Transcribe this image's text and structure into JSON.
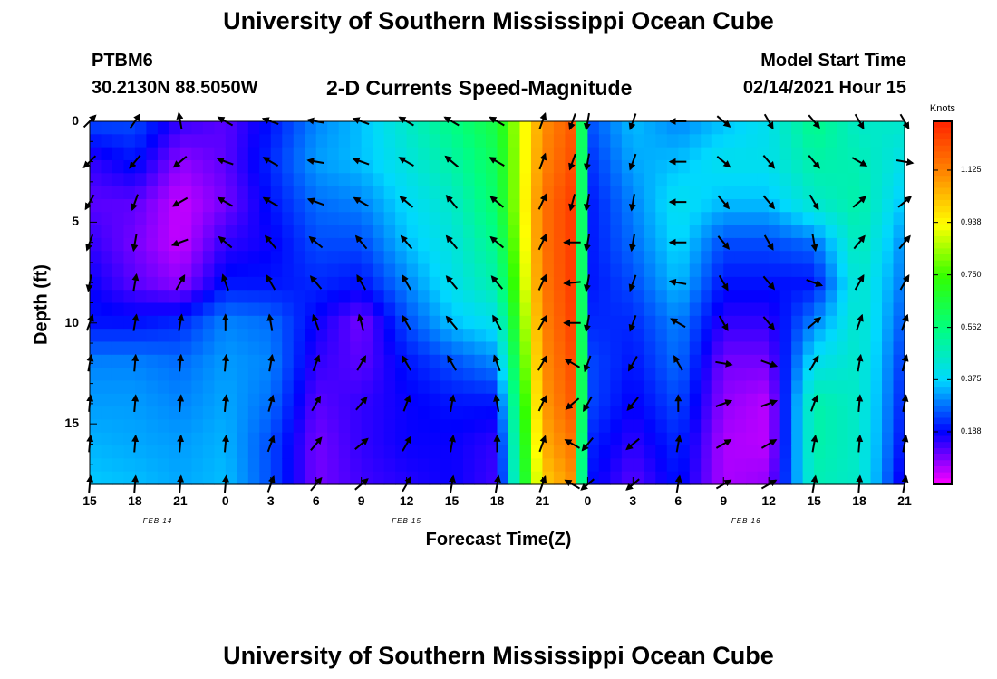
{
  "header": {
    "title": "University of Southern Mississippi Ocean Cube",
    "station": "PTBM6",
    "coords": "30.2130N 88.5050W",
    "product": "2-D Currents Speed-Magnitude",
    "model_start_label": "Model Start Time",
    "model_start_value": "02/14/2021 Hour 15"
  },
  "footer": {
    "title": "University of Southern Mississippi Ocean Cube"
  },
  "colors": {
    "scale": [
      "#ff00ff",
      "#0000ff",
      "#00d8ff",
      "#00ff80",
      "#33ff00",
      "#ffff00",
      "#ff8800",
      "#ff2200"
    ]
  },
  "chart_data": {
    "type": "heatmap",
    "title": "2-D Currents Speed-Magnitude",
    "xlabel": "Forecast Time(Z)",
    "ylabel": "Depth (ft)",
    "units": "Knots",
    "ylim": [
      0,
      18
    ],
    "y_ticks": [
      0,
      5,
      10,
      15
    ],
    "x_start_hour": 0,
    "x_end_hour": 54,
    "x_ticks": [
      "15",
      "18",
      "21",
      "0",
      "3",
      "6",
      "9",
      "12",
      "15",
      "18",
      "21",
      "0",
      "3",
      "6",
      "9",
      "12",
      "15",
      "18",
      "21"
    ],
    "date_labels": [
      {
        "text": "FEB 14",
        "hour": 4.5
      },
      {
        "text": "FEB 15",
        "hour": 21
      },
      {
        "text": "FEB 16",
        "hour": 43.5
      }
    ],
    "colorbar": {
      "min": 0.0,
      "max": 1.3,
      "ticks": [
        "0.188",
        "0.375",
        "0.562",
        "0.750",
        "0.938",
        "1.125"
      ]
    },
    "depths": [
      0,
      2,
      4,
      6,
      8,
      10,
      12,
      14,
      16,
      18
    ],
    "time_columns": [
      {
        "hour": 0,
        "speeds": [
          0.25,
          0.15,
          0.12,
          0.15,
          0.18,
          0.2,
          0.3,
          0.32,
          0.34,
          0.36
        ],
        "directions": [
          45,
          225,
          210,
          200,
          190,
          20,
          10,
          5,
          5,
          5
        ]
      },
      {
        "hour": 3,
        "speeds": [
          0.25,
          0.2,
          0.12,
          0.1,
          0.12,
          0.2,
          0.3,
          0.32,
          0.33,
          0.35
        ],
        "directions": [
          35,
          220,
          200,
          190,
          10,
          10,
          5,
          5,
          5,
          5
        ]
      },
      {
        "hour": 6,
        "speeds": [
          0.15,
          0.08,
          0.04,
          0.04,
          0.08,
          0.22,
          0.28,
          0.3,
          0.32,
          0.33
        ],
        "directions": [
          350,
          230,
          240,
          250,
          30,
          10,
          5,
          5,
          5,
          5
        ]
      },
      {
        "hour": 9,
        "speeds": [
          0.12,
          0.12,
          0.1,
          0.15,
          0.2,
          0.3,
          0.32,
          0.33,
          0.34,
          0.35
        ],
        "directions": [
          300,
          290,
          300,
          310,
          340,
          0,
          5,
          5,
          5,
          5
        ]
      },
      {
        "hour": 12,
        "speeds": [
          0.2,
          0.22,
          0.2,
          0.18,
          0.2,
          0.28,
          0.3,
          0.28,
          0.25,
          0.25
        ],
        "directions": [
          290,
          300,
          300,
          320,
          330,
          350,
          10,
          15,
          20,
          20
        ]
      },
      {
        "hour": 15,
        "speeds": [
          0.3,
          0.32,
          0.28,
          0.25,
          0.22,
          0.18,
          0.15,
          0.12,
          0.1,
          0.1
        ],
        "directions": [
          280,
          280,
          290,
          310,
          320,
          340,
          20,
          30,
          40,
          40
        ]
      },
      {
        "hour": 18,
        "speeds": [
          0.35,
          0.35,
          0.3,
          0.25,
          0.2,
          0.1,
          0.12,
          0.15,
          0.15,
          0.14
        ],
        "directions": [
          290,
          290,
          300,
          320,
          330,
          345,
          30,
          40,
          50,
          50
        ]
      },
      {
        "hour": 21,
        "speeds": [
          0.45,
          0.42,
          0.38,
          0.35,
          0.3,
          0.25,
          0.2,
          0.18,
          0.18,
          0.16
        ],
        "directions": [
          300,
          300,
          310,
          320,
          330,
          330,
          330,
          20,
          30,
          30
        ]
      },
      {
        "hour": 24,
        "speeds": [
          0.55,
          0.5,
          0.45,
          0.42,
          0.4,
          0.35,
          0.25,
          0.2,
          0.18,
          0.18
        ],
        "directions": [
          300,
          310,
          320,
          320,
          320,
          320,
          330,
          10,
          10,
          10
        ]
      },
      {
        "hour": 27,
        "speeds": [
          0.65,
          0.62,
          0.6,
          0.55,
          0.5,
          0.4,
          0.3,
          0.2,
          0.15,
          0.14
        ],
        "directions": [
          300,
          300,
          310,
          310,
          320,
          330,
          340,
          350,
          0,
          10
        ]
      },
      {
        "hour": 30,
        "speeds": [
          1.1,
          1.12,
          1.15,
          1.15,
          1.14,
          1.12,
          1.1,
          1.08,
          1.05,
          1.0
        ],
        "directions": [
          20,
          20,
          25,
          25,
          25,
          30,
          30,
          25,
          20,
          20
        ]
      },
      {
        "hour": 32,
        "speeds": [
          1.2,
          1.22,
          1.25,
          1.25,
          1.25,
          1.24,
          1.22,
          1.2,
          1.15,
          1.1
        ],
        "directions": [
          200,
          200,
          195,
          270,
          265,
          270,
          300,
          230,
          300,
          300
        ]
      },
      {
        "hour": 33,
        "speeds": [
          0.25,
          0.22,
          0.2,
          0.2,
          0.2,
          0.22,
          0.25,
          0.25,
          0.22,
          0.2
        ],
        "directions": [
          190,
          190,
          190,
          190,
          190,
          190,
          200,
          210,
          220,
          230
        ]
      },
      {
        "hour": 36,
        "speeds": [
          0.35,
          0.33,
          0.3,
          0.28,
          0.25,
          0.22,
          0.2,
          0.18,
          0.15,
          0.12
        ],
        "directions": [
          200,
          200,
          190,
          190,
          200,
          200,
          210,
          220,
          230,
          230
        ]
      },
      {
        "hour": 39,
        "speeds": [
          0.3,
          0.35,
          0.4,
          0.38,
          0.35,
          0.3,
          0.28,
          0.25,
          0.22,
          0.2
        ],
        "directions": [
          270,
          270,
          270,
          270,
          280,
          300,
          330,
          0,
          10,
          10
        ]
      },
      {
        "hour": 42,
        "speeds": [
          0.35,
          0.4,
          0.35,
          0.25,
          0.2,
          0.15,
          0.1,
          0.08,
          0.06,
          0.06
        ],
        "directions": [
          130,
          130,
          140,
          140,
          150,
          150,
          100,
          70,
          60,
          60
        ]
      },
      {
        "hour": 45,
        "speeds": [
          0.4,
          0.4,
          0.35,
          0.25,
          0.2,
          0.15,
          0.1,
          0.05,
          0.05,
          0.08
        ],
        "directions": [
          150,
          140,
          140,
          150,
          140,
          140,
          110,
          70,
          60,
          60
        ]
      },
      {
        "hour": 48,
        "speeds": [
          0.55,
          0.5,
          0.45,
          0.28,
          0.2,
          0.3,
          0.4,
          0.5,
          0.5,
          0.48
        ],
        "directions": [
          140,
          140,
          150,
          170,
          110,
          50,
          30,
          20,
          10,
          10
        ]
      },
      {
        "hour": 51,
        "speeds": [
          0.45,
          0.48,
          0.5,
          0.48,
          0.45,
          0.45,
          0.45,
          0.45,
          0.45,
          0.45
        ],
        "directions": [
          150,
          120,
          50,
          40,
          30,
          20,
          10,
          5,
          5,
          5
        ]
      },
      {
        "hour": 54,
        "speeds": [
          0.45,
          0.4,
          0.35,
          0.3,
          0.28,
          0.25,
          0.22,
          0.2,
          0.18,
          0.15
        ],
        "directions": [
          150,
          100,
          50,
          40,
          30,
          20,
          15,
          10,
          10,
          10
        ]
      }
    ]
  }
}
